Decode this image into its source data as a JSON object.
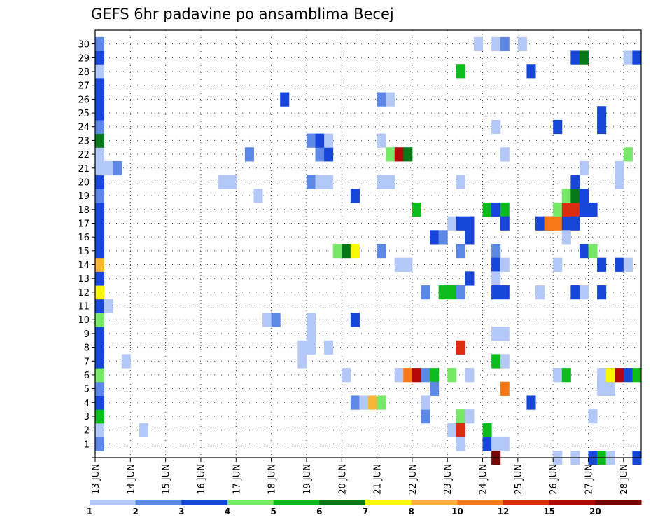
{
  "chart_data": {
    "type": "heatmap",
    "title": "GEFS 6hr padavine po ansamblima Becej",
    "xlabel": "",
    "ylabel": "",
    "x_tick_labels": [
      "13 JUN",
      "14 JUN",
      "15 JUN",
      "16 JUN",
      "17 JUN",
      "18 JUN",
      "19 JUN",
      "20 JUN",
      "21 JUN",
      "22 JUN",
      "23 JUN",
      "24 JUN",
      "25 JUN",
      "26 JUN",
      "27 JUN",
      "28 JUN"
    ],
    "y_tick_labels": [
      "1",
      "2",
      "3",
      "4",
      "5",
      "6",
      "7",
      "8",
      "9",
      "10",
      "11",
      "12",
      "13",
      "14",
      "15",
      "16",
      "17",
      "18",
      "19",
      "20",
      "21",
      "22",
      "23",
      "24",
      "25",
      "26",
      "27",
      "28",
      "29",
      "30"
    ],
    "xlim": [
      0,
      62
    ],
    "ylim": [
      0,
      30
    ],
    "grid": true,
    "colorbar": {
      "levels": [
        1,
        2,
        3,
        4,
        5,
        6,
        7,
        8,
        10,
        12,
        15,
        20
      ],
      "labels": [
        "1",
        "2",
        "3",
        "4",
        "5",
        "6",
        "7",
        "8",
        "10",
        "12",
        "15",
        "20"
      ],
      "colors": [
        "#b4c8f8",
        "#5e88e6",
        "#1846d8",
        "#78e868",
        "#0cbc1c",
        "#087818",
        "#f8f800",
        "#f8b438",
        "#f87818",
        "#dc2c10",
        "#b40808",
        "#780404"
      ]
    },
    "cells": [
      [
        0,
        0,
        1
      ],
      [
        0,
        1,
        0
      ],
      [
        0,
        2,
        4
      ],
      [
        0,
        3,
        2
      ],
      [
        0,
        4,
        1
      ],
      [
        0,
        5,
        3
      ],
      [
        0,
        6,
        2
      ],
      [
        0,
        7,
        2
      ],
      [
        0,
        8,
        2
      ],
      [
        0,
        9,
        3
      ],
      [
        0,
        10,
        2
      ],
      [
        0,
        11,
        6
      ],
      [
        0,
        12,
        2
      ],
      [
        0,
        13,
        7
      ],
      [
        0,
        14,
        2
      ],
      [
        0,
        15,
        2
      ],
      [
        0,
        16,
        2
      ],
      [
        0,
        17,
        2
      ],
      [
        0,
        18,
        1
      ],
      [
        0,
        19,
        2
      ],
      [
        0,
        20,
        0
      ],
      [
        0,
        21,
        0
      ],
      [
        0,
        22,
        5
      ],
      [
        0,
        23,
        1
      ],
      [
        0,
        24,
        2
      ],
      [
        0,
        25,
        2
      ],
      [
        0,
        26,
        2
      ],
      [
        0,
        27,
        0
      ],
      [
        0,
        28,
        2
      ],
      [
        0,
        29,
        1
      ],
      [
        1,
        10,
        0
      ],
      [
        1,
        20,
        0
      ],
      [
        2,
        20,
        1
      ],
      [
        3,
        6,
        0
      ],
      [
        5,
        1,
        0
      ],
      [
        14,
        19,
        0
      ],
      [
        15,
        19,
        0
      ],
      [
        17,
        21,
        1
      ],
      [
        18,
        18,
        0
      ],
      [
        19,
        9,
        0
      ],
      [
        20,
        9,
        1
      ],
      [
        21,
        25,
        2
      ],
      [
        23,
        7,
        0
      ],
      [
        23,
        6,
        0
      ],
      [
        24,
        7,
        0
      ],
      [
        24,
        8,
        0
      ],
      [
        24,
        9,
        0
      ],
      [
        24,
        19,
        1
      ],
      [
        24,
        22,
        1
      ],
      [
        25,
        19,
        0
      ],
      [
        25,
        21,
        1
      ],
      [
        25,
        22,
        2
      ],
      [
        26,
        19,
        0
      ],
      [
        26,
        21,
        2
      ],
      [
        26,
        22,
        0
      ],
      [
        26,
        7,
        0
      ],
      [
        27,
        14,
        3
      ],
      [
        28,
        14,
        5
      ],
      [
        28,
        5,
        0
      ],
      [
        29,
        14,
        6
      ],
      [
        29,
        18,
        2
      ],
      [
        29,
        9,
        2
      ],
      [
        29,
        3,
        1
      ],
      [
        30,
        3,
        0
      ],
      [
        31,
        3,
        7
      ],
      [
        32,
        14,
        1
      ],
      [
        32,
        3,
        3
      ],
      [
        32,
        19,
        0
      ],
      [
        32,
        22,
        0
      ],
      [
        32,
        25,
        1
      ],
      [
        33,
        25,
        0
      ],
      [
        33,
        19,
        0
      ],
      [
        33,
        21,
        3
      ],
      [
        34,
        21,
        10
      ],
      [
        35,
        21,
        5
      ],
      [
        34,
        13,
        0
      ],
      [
        35,
        13,
        0
      ],
      [
        34,
        5,
        0
      ],
      [
        35,
        5,
        8
      ],
      [
        36,
        5,
        10
      ],
      [
        37,
        5,
        1
      ],
      [
        38,
        5,
        4
      ],
      [
        36,
        17,
        4
      ],
      [
        37,
        11,
        1
      ],
      [
        37,
        2,
        1
      ],
      [
        37,
        3,
        0
      ],
      [
        38,
        15,
        2
      ],
      [
        38,
        4,
        1
      ],
      [
        39,
        15,
        1
      ],
      [
        39,
        11,
        4
      ],
      [
        40,
        11,
        4
      ],
      [
        40,
        16,
        0
      ],
      [
        40,
        1,
        0
      ],
      [
        40,
        5,
        3
      ],
      [
        41,
        16,
        2
      ],
      [
        41,
        11,
        1
      ],
      [
        41,
        14,
        1
      ],
      [
        41,
        2,
        3
      ],
      [
        41,
        7,
        9
      ],
      [
        41,
        1,
        9
      ],
      [
        41,
        0,
        0
      ],
      [
        41,
        19,
        0
      ],
      [
        41,
        27,
        4
      ],
      [
        42,
        2,
        0
      ],
      [
        42,
        15,
        2
      ],
      [
        42,
        16,
        2
      ],
      [
        42,
        12,
        2
      ],
      [
        42,
        5,
        0
      ],
      [
        43,
        29,
        0
      ],
      [
        44,
        17,
        4
      ],
      [
        44,
        0,
        2
      ],
      [
        44,
        1,
        4
      ],
      [
        45,
        17,
        4
      ],
      [
        45,
        29,
        0
      ],
      [
        45,
        23,
        0
      ],
      [
        45,
        17,
        2
      ],
      [
        45,
        14,
        1
      ],
      [
        45,
        13,
        2
      ],
      [
        45,
        12,
        0
      ],
      [
        45,
        11,
        2
      ],
      [
        45,
        8,
        0
      ],
      [
        45,
        6,
        4
      ],
      [
        45,
        0,
        0
      ],
      [
        45,
        -1,
        11
      ],
      [
        46,
        17,
        4
      ],
      [
        46,
        16,
        2
      ],
      [
        46,
        13,
        0
      ],
      [
        46,
        11,
        2
      ],
      [
        46,
        8,
        0
      ],
      [
        46,
        6,
        0
      ],
      [
        46,
        4,
        8
      ],
      [
        46,
        0,
        0
      ],
      [
        46,
        21,
        0
      ],
      [
        46,
        29,
        1
      ],
      [
        48,
        29,
        0
      ],
      [
        49,
        27,
        2
      ],
      [
        49,
        3,
        2
      ],
      [
        50,
        16,
        2
      ],
      [
        50,
        11,
        0
      ],
      [
        51,
        16,
        2
      ],
      [
        51,
        16,
        8
      ],
      [
        52,
        16,
        8
      ],
      [
        52,
        17,
        3
      ],
      [
        52,
        13,
        0
      ],
      [
        52,
        5,
        0
      ],
      [
        52,
        23,
        2
      ],
      [
        52,
        -1,
        0
      ],
      [
        53,
        16,
        2
      ],
      [
        53,
        17,
        9
      ],
      [
        53,
        18,
        3
      ],
      [
        53,
        15,
        0
      ],
      [
        53,
        5,
        4
      ],
      [
        54,
        17,
        9
      ],
      [
        54,
        16,
        2
      ],
      [
        54,
        11,
        2
      ],
      [
        54,
        18,
        5
      ],
      [
        54,
        19,
        2
      ],
      [
        54,
        28,
        2
      ],
      [
        54,
        -1,
        0
      ],
      [
        55,
        17,
        2
      ],
      [
        55,
        18,
        2
      ],
      [
        55,
        11,
        0
      ],
      [
        55,
        14,
        2
      ],
      [
        55,
        20,
        0
      ],
      [
        55,
        28,
        5
      ],
      [
        56,
        17,
        2
      ],
      [
        56,
        2,
        0
      ],
      [
        56,
        14,
        3
      ],
      [
        56,
        -1,
        2
      ],
      [
        57,
        -1,
        4
      ],
      [
        58,
        -1,
        0
      ],
      [
        57,
        23,
        2
      ],
      [
        57,
        24,
        2
      ],
      [
        57,
        11,
        2
      ],
      [
        57,
        13,
        2
      ],
      [
        57,
        5,
        0
      ],
      [
        57,
        4,
        0
      ],
      [
        58,
        4,
        0
      ],
      [
        58,
        5,
        1
      ],
      [
        58,
        5,
        6
      ],
      [
        59,
        5,
        10
      ],
      [
        59,
        13,
        2
      ],
      [
        59,
        19,
        0
      ],
      [
        59,
        20,
        0
      ],
      [
        60,
        5,
        2
      ],
      [
        60,
        21,
        3
      ],
      [
        60,
        13,
        0
      ],
      [
        60,
        28,
        0
      ],
      [
        61,
        28,
        2
      ],
      [
        61,
        5,
        4
      ],
      [
        61,
        -1,
        2
      ]
    ]
  }
}
